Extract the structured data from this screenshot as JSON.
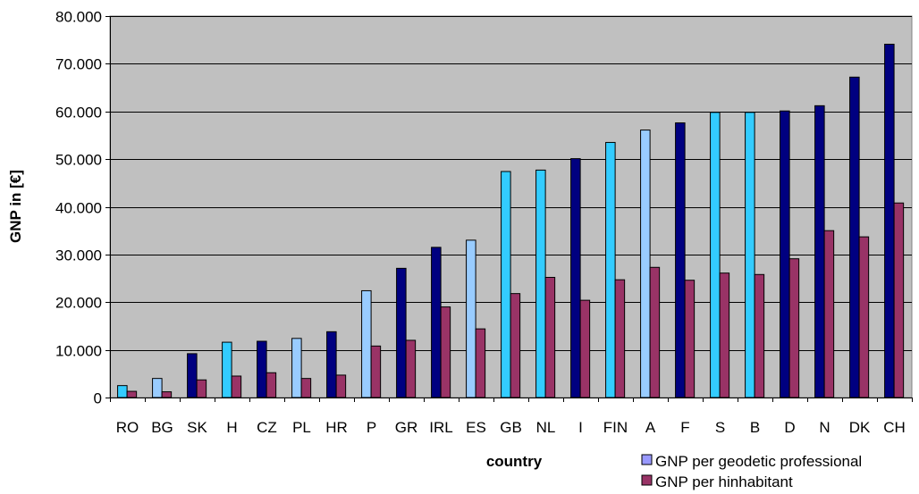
{
  "chart_data": {
    "type": "bar",
    "xlabel": "country",
    "ylabel": "GNP in [€]",
    "ylim": [
      0,
      80000
    ],
    "ytick_step": 10000,
    "ytick_labels": [
      "0",
      "10.000",
      "20.000",
      "30.000",
      "40.000",
      "50.000",
      "60.000",
      "70.000",
      "80.000"
    ],
    "grid": true,
    "legend_position": "bottom-right",
    "plot_background": "#c0c0c0",
    "categories": [
      "RO",
      "BG",
      "SK",
      "H",
      "CZ",
      "PL",
      "HR",
      "P",
      "GR",
      "IRL",
      "ES",
      "GB",
      "NL",
      "I",
      "FIN",
      "A",
      "F",
      "S",
      "B",
      "D",
      "N",
      "DK",
      "CH"
    ],
    "series": [
      {
        "name": "GNP per geodetic professional",
        "legend_color": "#9999ff",
        "values": [
          2500,
          4000,
          9200,
          11600,
          11800,
          12400,
          13800,
          22400,
          27100,
          31500,
          33000,
          47400,
          47700,
          50100,
          53500,
          56100,
          57600,
          59800,
          59800,
          60100,
          61200,
          67200,
          74100
        ],
        "bar_colors": [
          "#33ccff",
          "#99ccff",
          "#000080",
          "#33ccff",
          "#000080",
          "#99ccff",
          "#000080",
          "#99ccff",
          "#000080",
          "#000080",
          "#99ccff",
          "#33ccff",
          "#33ccff",
          "#000080",
          "#33ccff",
          "#99ccff",
          "#000080",
          "#33ccff",
          "#33ccff",
          "#000080",
          "#000080",
          "#000080",
          "#000080"
        ]
      },
      {
        "name": "GNP per hinhabitant",
        "legend_color": "#993366",
        "values": [
          1300,
          1200,
          3700,
          4500,
          5200,
          4000,
          4700,
          10800,
          12000,
          19000,
          14400,
          21800,
          25200,
          20400,
          24700,
          27300,
          24600,
          26100,
          25800,
          29100,
          35000,
          33700,
          40800
        ],
        "bar_color": "#993366"
      }
    ]
  }
}
